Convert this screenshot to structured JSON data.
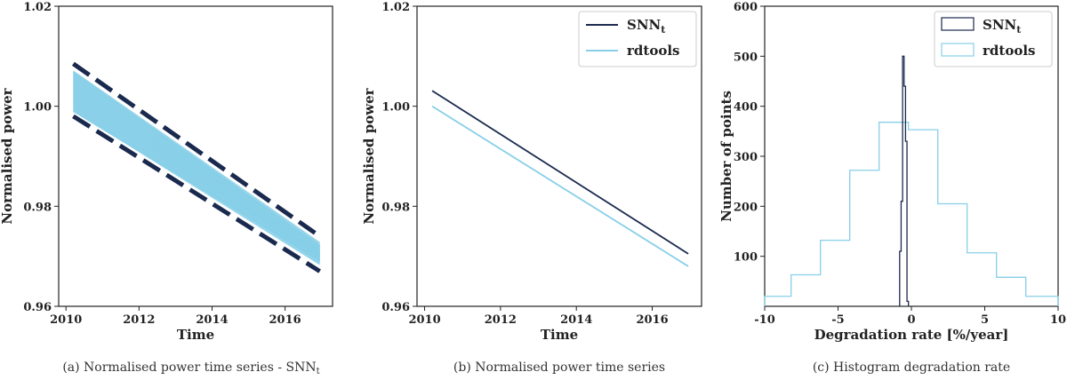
{
  "colors": {
    "dark": "#1a2a4e",
    "light": "#87cfe8",
    "frame": "#222222"
  },
  "chart_data": [
    {
      "type": "line",
      "caption_main": "(a) Normalised power time series - SNN",
      "caption_sub": "t",
      "xlabel": "Time",
      "ylabel": "Normalised power",
      "xlim": [
        2009.8,
        2017.3
      ],
      "ylim": [
        0.96,
        1.02
      ],
      "xticks": [
        2010,
        2012,
        2014,
        2016
      ],
      "yticks": [
        0.96,
        0.98,
        1.0,
        1.02
      ],
      "ytick_labels": [
        "0.96",
        "0.98",
        "1.00",
        "1.02"
      ],
      "band": {
        "x": [
          2010.2,
          2016.95
        ],
        "center_start": 1.003,
        "center_end": 0.9705,
        "spread_start": 0.004,
        "spread_end": 0.0022
      },
      "bounds": [
        {
          "name": "upper",
          "x": [
            2010.2,
            2016.95
          ],
          "y": [
            1.0085,
            0.974
          ]
        },
        {
          "name": "lower",
          "x": [
            2010.2,
            2016.95
          ],
          "y": [
            0.998,
            0.967
          ]
        }
      ]
    },
    {
      "type": "line",
      "caption": "(b) Normalised power time series",
      "xlabel": "Time",
      "ylabel": "Normalised power",
      "xlim": [
        2009.8,
        2017.3
      ],
      "ylim": [
        0.96,
        1.02
      ],
      "xticks": [
        2010,
        2012,
        2014,
        2016
      ],
      "yticks": [
        0.96,
        0.98,
        1.0,
        1.02
      ],
      "ytick_labels": [
        "0.96",
        "0.98",
        "1.00",
        "1.02"
      ],
      "series": [
        {
          "name": "SNN",
          "name_sub": "t",
          "x": [
            2010.2,
            2016.95
          ],
          "y": [
            1.0031,
            0.9705
          ]
        },
        {
          "name": "rdtools",
          "x": [
            2010.2,
            2016.95
          ],
          "y": [
            1.0,
            0.968
          ]
        }
      ]
    },
    {
      "type": "histogram",
      "caption": "(c) Histogram degradation rate",
      "xlabel": "Degradation rate [%/year]",
      "ylabel": "Number of points",
      "xlim": [
        -10,
        10
      ],
      "ylim": [
        0,
        600
      ],
      "xticks": [
        -10,
        -5,
        0,
        5,
        10
      ],
      "yticks": [
        100,
        200,
        300,
        400,
        500,
        600
      ],
      "series": [
        {
          "name": "SNN",
          "name_sub": "t",
          "edges": [
            -0.8,
            -0.7,
            -0.6,
            -0.5,
            -0.4,
            -0.3,
            -0.2
          ],
          "counts": [
            110,
            210,
            500,
            440,
            330,
            10
          ]
        },
        {
          "name": "rdtools",
          "edges": [
            -10,
            -8.2,
            -6.2,
            -4.2,
            -2.2,
            -0.2,
            1.8,
            3.8,
            5.8,
            7.8,
            10
          ],
          "counts": [
            20,
            63,
            132,
            272,
            368,
            353,
            205,
            107,
            58,
            20
          ]
        }
      ]
    }
  ]
}
